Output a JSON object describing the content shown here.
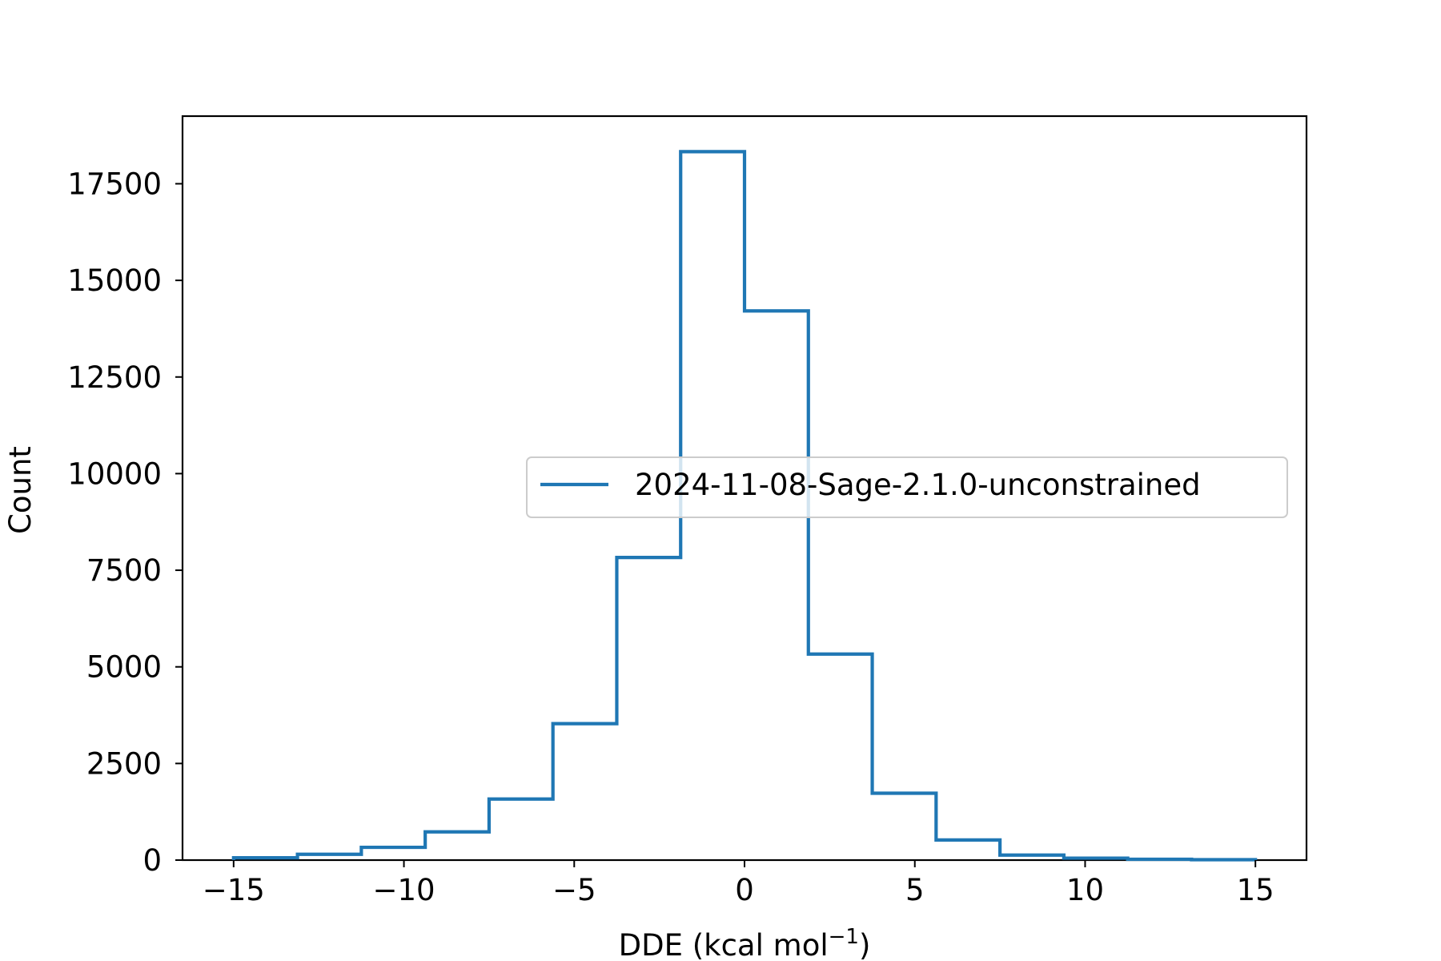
{
  "chart_data": {
    "type": "histogram-step",
    "title": "",
    "xlabel": "DDE (kcal mol",
    "xlabel_sup": "−1",
    "xlabel_close": ")",
    "ylabel": "Count",
    "xlim": [
      -16.5,
      16.5
    ],
    "ylim": [
      0,
      19250
    ],
    "x_ticks": [
      -15,
      -10,
      -5,
      0,
      5,
      10,
      15
    ],
    "x_tick_labels": [
      "−15",
      "−10",
      "−5",
      "0",
      "5",
      "10",
      "15"
    ],
    "y_ticks": [
      0,
      2500,
      5000,
      7500,
      10000,
      12500,
      15000,
      17500
    ],
    "y_tick_labels": [
      "0",
      "2500",
      "5000",
      "7500",
      "10000",
      "12500",
      "15000",
      "17500"
    ],
    "legend_position": "center-right",
    "grid": false,
    "series": [
      {
        "name": "2024-11-08-Sage-2.1.0-unconstrained",
        "color": "#1f77b4",
        "bin_edges": [
          -15,
          -13.125,
          -11.25,
          -9.375,
          -7.5,
          -5.625,
          -3.75,
          -1.875,
          0,
          1.875,
          3.75,
          5.625,
          7.5,
          9.375,
          11.25,
          13.125,
          15
        ],
        "counts": [
          60,
          150,
          330,
          730,
          1580,
          3530,
          7830,
          18330,
          14210,
          5330,
          1730,
          520,
          130,
          50,
          20,
          10
        ]
      }
    ]
  }
}
